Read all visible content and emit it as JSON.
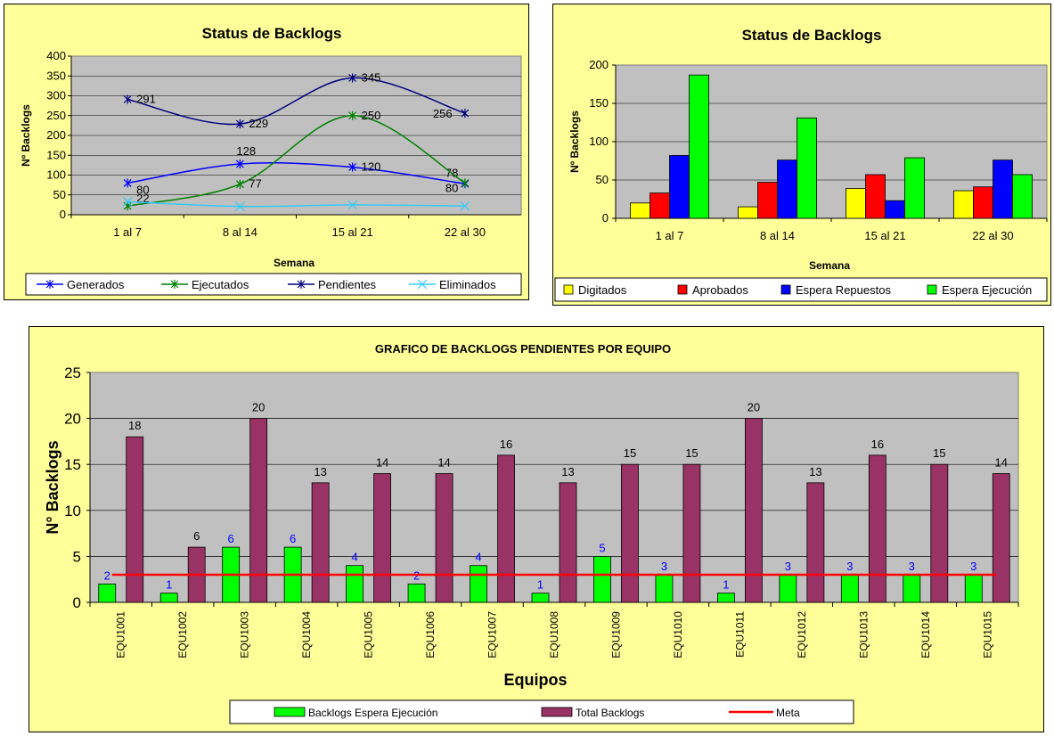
{
  "chart_data": [
    {
      "type": "line",
      "title": "Status de Backlogs",
      "xlabel": "Semana",
      "ylabel": "Nº Backlogs",
      "ylim": [
        0,
        400
      ],
      "yticks": [
        "0",
        "50",
        "100",
        "150",
        "200",
        "250",
        "300",
        "350",
        "400"
      ],
      "categories": [
        "1 al 7",
        "8 al 14",
        "15 al 21",
        "22 al 30"
      ],
      "grid": "horizontal",
      "legend_position": "bottom",
      "series": [
        {
          "name": "Generados",
          "values": [
            80,
            128,
            120,
            78
          ],
          "labels": [
            "80",
            "128",
            "120",
            "78"
          ],
          "color": "#0000ff"
        },
        {
          "name": "Ejecutados",
          "values": [
            22,
            77,
            250,
            80
          ],
          "labels": [
            "22",
            "77",
            "250",
            "80"
          ],
          "color": "#008000"
        },
        {
          "name": "Pendientes",
          "values": [
            291,
            229,
            345,
            256
          ],
          "labels": [
            "291",
            "229",
            "345",
            "256"
          ],
          "color": "#000080"
        },
        {
          "name": "Eliminados",
          "values": [
            33,
            21,
            25,
            22
          ],
          "labels": [],
          "color": "#33ccff"
        }
      ]
    },
    {
      "type": "bar",
      "title": "Status de Backlogs",
      "xlabel": "Semana",
      "ylabel": "Nº Backlogs",
      "ylim": [
        0,
        200
      ],
      "yticks": [
        "0",
        "50",
        "100",
        "150",
        "200"
      ],
      "categories": [
        "1 al 7",
        "8 al 14",
        "15 al 21",
        "22 al 30"
      ],
      "grid": "horizontal",
      "legend_position": "bottom",
      "series": [
        {
          "name": "Digitados",
          "values": [
            20,
            15,
            39,
            36
          ],
          "color": "#ffff00"
        },
        {
          "name": "Aprobados",
          "values": [
            33,
            47,
            57,
            41
          ],
          "color": "#ff0000"
        },
        {
          "name": "Espera Repuestos",
          "values": [
            82,
            76,
            23,
            76
          ],
          "color": "#0000ff"
        },
        {
          "name": "Espera Ejecución",
          "values": [
            187,
            131,
            79,
            57
          ],
          "color": "#00ff00"
        }
      ]
    },
    {
      "type": "bar",
      "title": "GRAFICO DE BACKLOGS  PENDIENTES POR EQUIPO",
      "xlabel": "Equipos",
      "ylabel": "N° Backlogs",
      "ylim": [
        0,
        25
      ],
      "yticks": [
        "0",
        "5",
        "10",
        "15",
        "20",
        "25"
      ],
      "categories": [
        "EQU1001",
        "EQU1002",
        "EQU1003",
        "EQU1004",
        "EQU1005",
        "EQU1006",
        "EQU1007",
        "EQU1008",
        "EQU1009",
        "EQU1010",
        "EQU1011",
        "EQU1012",
        "EQU1013",
        "EQU1014",
        "EQU1015"
      ],
      "grid": "horizontal",
      "legend_position": "bottom",
      "series": [
        {
          "name": "Backlogs Espera Ejecución",
          "values": [
            2,
            1,
            6,
            6,
            4,
            2,
            4,
            1,
            5,
            3,
            1,
            3,
            3,
            3,
            3
          ],
          "color": "#00ff00",
          "label_color": "#0000ff"
        },
        {
          "name": "Total Backlogs",
          "values": [
            18,
            6,
            20,
            13,
            14,
            14,
            16,
            13,
            15,
            15,
            20,
            13,
            16,
            15,
            14
          ],
          "color": "#993366",
          "label_color": "#000000"
        },
        {
          "name": "Meta",
          "type": "line",
          "value": 3,
          "color": "#ff0000"
        }
      ]
    }
  ]
}
